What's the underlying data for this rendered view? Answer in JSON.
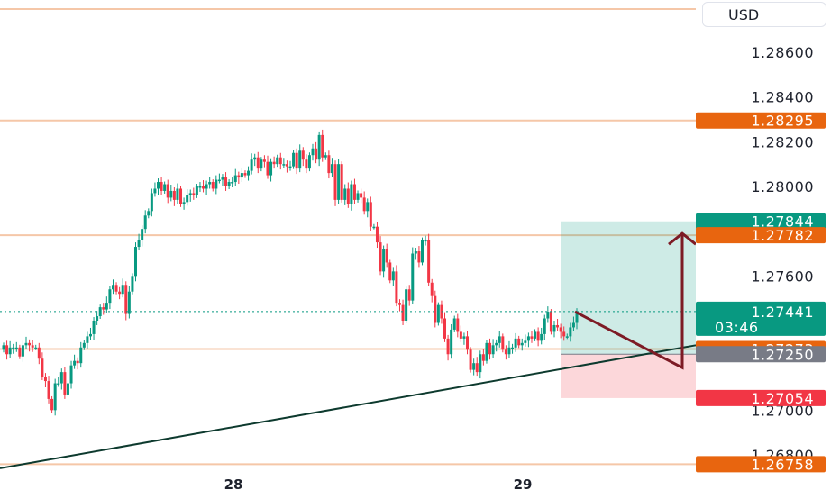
{
  "currency": "USD",
  "chart_data": {
    "type": "candlestick",
    "title": "",
    "ylim": [
      1.2664,
      1.2893
    ],
    "y_ticks": [
      "1.28600",
      "1.28400",
      "1.28200",
      "1.28000",
      "1.27600",
      "1.27000",
      "1.26800"
    ],
    "x_tick_labels": [
      "28",
      "29"
    ],
    "last_price": "1.27441",
    "countdown": "03:46",
    "horizontal_levels": [
      {
        "price": "1.28295",
        "color": "#f5c7a8"
      },
      {
        "price": "1.27782",
        "color": "#f5c7a8"
      },
      {
        "price": "1.27273",
        "color": "#f5c7a8"
      },
      {
        "price": "1.26758",
        "color": "#f5c7a8"
      }
    ],
    "price_badges": [
      {
        "text": "1.28295",
        "color": "#e8650f"
      },
      {
        "text": "1.27844",
        "color": "#089981"
      },
      {
        "text": "1.27782",
        "color": "#e8650f"
      },
      {
        "text": "1.27273",
        "color": "#e8650f"
      },
      {
        "text": "1.27250",
        "color": "#787b86"
      },
      {
        "text": "1.27054",
        "color": "#f23645"
      },
      {
        "text": "1.26758",
        "color": "#e8650f"
      }
    ],
    "position": {
      "entry": 1.2725,
      "target": 1.27844,
      "stop": 1.27054
    },
    "trendline": {
      "start": [
        0,
        1.2674
      ],
      "end": [
        1,
        1.2729
      ]
    },
    "series": [
      {
        "values": [
          1.2729,
          1.2725,
          1.2728,
          1.2728,
          1.2728,
          1.2724,
          1.2729,
          1.273,
          1.2729,
          1.2728,
          1.2728,
          1.2723,
          1.2715,
          1.2713,
          1.2705,
          1.27,
          1.2712,
          1.2712,
          1.2717,
          1.2707,
          1.2712,
          1.272,
          1.2722,
          1.2721,
          1.2728,
          1.273,
          1.2733,
          1.2734,
          1.274,
          1.2742,
          1.2746,
          1.2745,
          1.2748,
          1.2754,
          1.2756,
          1.2753,
          1.2752,
          1.2756,
          1.2743,
          1.2753,
          1.276,
          1.2773,
          1.2776,
          1.2781,
          1.2787,
          1.2789,
          1.2797,
          1.2799,
          1.2802,
          1.2798,
          1.2801,
          1.2795,
          1.2798,
          1.2794,
          1.2799,
          1.2792,
          1.2793,
          1.2796,
          1.2797,
          1.2796,
          1.28,
          1.28,
          1.2799,
          1.2801,
          1.2802,
          1.2799,
          1.2803,
          1.2803,
          1.2804,
          1.28,
          1.2802,
          1.2802,
          1.2805,
          1.2804,
          1.2806,
          1.2805,
          1.2807,
          1.2812,
          1.2813,
          1.2808,
          1.2812,
          1.2811,
          1.2805,
          1.2811,
          1.281,
          1.2813,
          1.281,
          1.281,
          1.2809,
          1.2809,
          1.2815,
          1.2808,
          1.2816,
          1.2812,
          1.2808,
          1.2814,
          1.2817,
          1.2812,
          1.2823,
          1.2813,
          1.2814,
          1.2806,
          1.281,
          1.2794,
          1.281,
          1.2794,
          1.2799,
          1.2792,
          1.2801,
          1.2794,
          1.2797,
          1.2795,
          1.2789,
          1.2793,
          1.2782,
          1.2782,
          1.2775,
          1.2762,
          1.2772,
          1.2766,
          1.2758,
          1.2762,
          1.2748,
          1.2747,
          1.274,
          1.2754,
          1.2749,
          1.277,
          1.2771,
          1.2766,
          1.2776,
          1.2776,
          1.2757,
          1.2751,
          1.2739,
          1.2747,
          1.2741,
          1.2732,
          1.2725,
          1.2736,
          1.2741,
          1.2735,
          1.2732,
          1.2733,
          1.2727,
          1.2718,
          1.2721,
          1.2717,
          1.2725,
          1.2722,
          1.273,
          1.2725,
          1.2729,
          1.273,
          1.2733,
          1.2727,
          1.2725,
          1.2728,
          1.2728,
          1.2732,
          1.2729,
          1.273,
          1.2731,
          1.2733,
          1.2732,
          1.2735,
          1.2731,
          1.2734,
          1.2741,
          1.2744,
          1.2735,
          1.2738,
          1.2737,
          1.2735,
          1.2733,
          1.2733,
          1.2737,
          1.2739,
          1.2744
        ],
        "name": ""
      }
    ]
  }
}
